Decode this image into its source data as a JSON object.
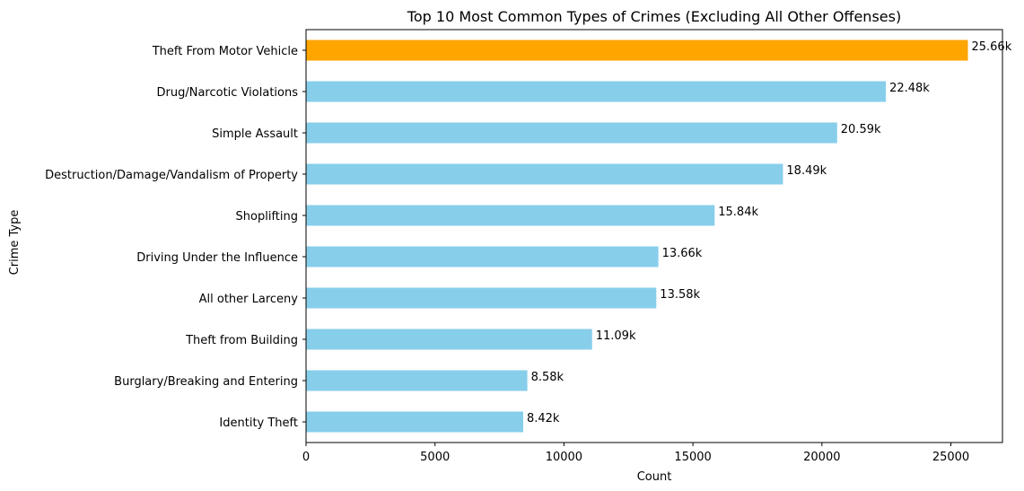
{
  "chart_data": {
    "type": "bar",
    "orientation": "horizontal",
    "title": "Top 10 Most Common Types of Crimes (Excluding All Other Offenses)",
    "xlabel": "Count",
    "ylabel": "Crime Type",
    "xlim": [
      0,
      27000
    ],
    "x_ticks": [
      0,
      5000,
      10000,
      15000,
      20000,
      25000
    ],
    "x_tick_labels": [
      "0",
      "5000",
      "10000",
      "15000",
      "20000",
      "25000"
    ],
    "grid": false,
    "categories": [
      "Theft From Motor Vehicle",
      "Drug/Narcotic Violations",
      "Simple Assault",
      "Destruction/Damage/Vandalism of Property",
      "Shoplifting",
      "Driving Under the Influence",
      "All other Larceny",
      "Theft from Building",
      "Burglary/Breaking and Entering",
      "Identity Theft"
    ],
    "values": [
      25660,
      22480,
      20590,
      18490,
      15840,
      13660,
      13580,
      11090,
      8580,
      8420
    ],
    "data_labels": [
      "25.66k",
      "22.48k",
      "20.59k",
      "18.49k",
      "15.84k",
      "13.66k",
      "13.58k",
      "11.09k",
      "8.58k",
      "8.42k"
    ],
    "colors": {
      "highlight": "#FFA500",
      "default": "#87CEEB"
    },
    "highlight_index": 0
  }
}
